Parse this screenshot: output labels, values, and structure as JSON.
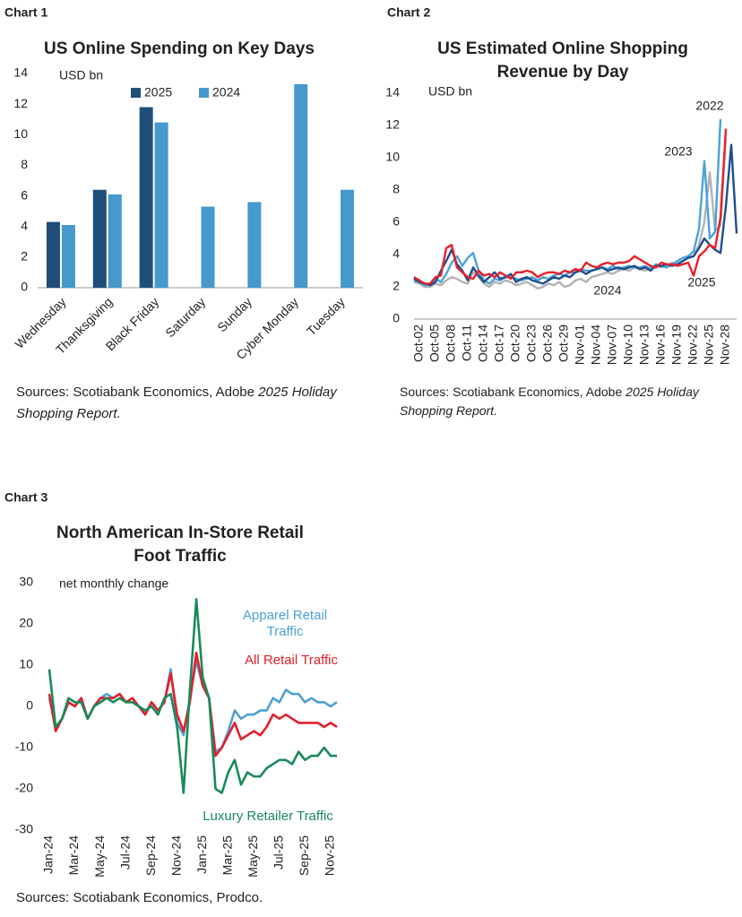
{
  "chart_data": [
    {
      "type": "bar",
      "label": "Chart 1",
      "title": "US Online Spending on Key Days",
      "y_label": "USD bn",
      "categories": [
        "Wednesday",
        "Thanksgiving",
        "Black Friday",
        "Saturday",
        "Sunday",
        "Cyber Monday",
        "Tuesday"
      ],
      "series": [
        {
          "name": "2025",
          "color": "#1f4e79",
          "values": [
            4.3,
            6.4,
            11.8,
            null,
            null,
            null,
            null
          ]
        },
        {
          "name": "2024",
          "color": "#4599cc",
          "values": [
            4.1,
            6.1,
            10.8,
            5.3,
            5.6,
            13.3,
            6.4
          ]
        }
      ],
      "ylim": [
        0,
        14
      ],
      "yticks": [
        0,
        2,
        4,
        6,
        8,
        10,
        12,
        14
      ],
      "sources": "Sources: Scotiabank Economics, Adobe ",
      "sources_italic": "2025 Holiday Shopping Report."
    },
    {
      "type": "line",
      "label": "Chart 2",
      "title": "US Estimated Online Shopping Revenue by Day",
      "y_label": "USD bn",
      "categories": [
        null,
        "Oct-02",
        null,
        null,
        "Oct-05",
        null,
        null,
        "Oct-08",
        null,
        null,
        "Oct-11",
        null,
        null,
        "Oct-14",
        null,
        null,
        "Oct-17",
        null,
        null,
        "Oct-20",
        null,
        null,
        "Oct-23",
        null,
        null,
        "Oct-26",
        null,
        null,
        "Oct-29",
        null,
        null,
        "Nov-01",
        null,
        null,
        "Nov-04",
        null,
        null,
        "Nov-07",
        null,
        null,
        "Nov-10",
        null,
        null,
        "Nov-13",
        null,
        null,
        "Nov-16",
        null,
        null,
        "Nov-19",
        null,
        null,
        "Nov-22",
        null,
        null,
        "Nov-25",
        null,
        null,
        "Nov-28",
        null,
        null
      ],
      "series": [
        {
          "name": "2022",
          "color": "#b3b3b3",
          "values": [
            2.3,
            2.2,
            2.0,
            2.0,
            2.2,
            2.1,
            2.4,
            2.6,
            2.5,
            2.3,
            2.2,
            2.9,
            2.6,
            2.2,
            2.0,
            2.3,
            2.2,
            2.4,
            2.3,
            2.1,
            2.2,
            2.3,
            2.1,
            1.9,
            2.0,
            2.2,
            2.1,
            2.3,
            2.0,
            2.1,
            2.4,
            2.5,
            2.3,
            2.6,
            2.7,
            2.8,
            2.9,
            2.8,
            3.0,
            3.1,
            3.0,
            3.2,
            3.1,
            3.0,
            3.2,
            3.3,
            3.2,
            3.3,
            3.5,
            3.4,
            3.6,
            3.8,
            3.9,
            4.6,
            6.0,
            9.1,
            5.5,
            5.8,
            11.3,
            null,
            null
          ]
        },
        {
          "name": "2023",
          "color": "#4aa3d8",
          "values": [
            2.4,
            2.3,
            2.1,
            2.2,
            2.5,
            2.3,
            2.8,
            3.5,
            3.9,
            3.3,
            3.8,
            4.1,
            3.0,
            2.4,
            2.2,
            2.5,
            2.4,
            2.6,
            2.6,
            2.5,
            2.4,
            2.5,
            2.6,
            2.4,
            2.6,
            2.5,
            2.7,
            2.8,
            2.7,
            2.9,
            2.9,
            3.1,
            3.0,
            3.0,
            3.1,
            3.2,
            3.1,
            3.3,
            3.1,
            3.2,
            3.3,
            3.2,
            3.2,
            3.3,
            3.1,
            3.4,
            3.3,
            3.2,
            3.4,
            3.6,
            3.8,
            3.9,
            4.2,
            5.6,
            9.8,
            5.0,
            5.4,
            12.4,
            null,
            null,
            null
          ]
        },
        {
          "name": "2024",
          "color": "#1f4e8c",
          "values": [
            2.5,
            2.3,
            2.2,
            2.1,
            2.3,
            3.0,
            3.6,
            4.3,
            3.4,
            3.0,
            2.4,
            3.2,
            2.7,
            2.3,
            2.6,
            2.9,
            2.5,
            2.6,
            2.8,
            2.3,
            2.5,
            2.6,
            2.4,
            2.3,
            2.2,
            2.4,
            2.6,
            2.5,
            2.7,
            2.6,
            2.9,
            3.0,
            2.8,
            3.0,
            3.1,
            3.2,
            3.0,
            3.1,
            3.2,
            3.1,
            3.2,
            3.3,
            3.1,
            3.2,
            3.0,
            3.3,
            3.3,
            3.4,
            3.3,
            3.4,
            3.6,
            3.8,
            3.9,
            4.4,
            5.0,
            4.6,
            4.3,
            4.1,
            7.0,
            10.8,
            5.3
          ]
        },
        {
          "name": "2025",
          "color": "#e8202a",
          "values": [
            2.6,
            2.4,
            2.2,
            2.2,
            2.6,
            2.7,
            4.4,
            4.6,
            3.2,
            2.9,
            2.6,
            2.5,
            3.0,
            2.7,
            2.8,
            2.6,
            2.9,
            2.7,
            2.5,
            2.9,
            2.9,
            3.0,
            2.9,
            2.6,
            2.8,
            2.9,
            2.9,
            2.8,
            3.0,
            2.9,
            3.1,
            3.0,
            3.5,
            3.3,
            3.2,
            3.4,
            3.5,
            3.4,
            3.5,
            3.5,
            3.6,
            3.9,
            3.7,
            3.5,
            3.3,
            3.2,
            3.5,
            3.4,
            3.4,
            3.3,
            3.4,
            3.5,
            2.7,
            3.9,
            4.2,
            4.6,
            4.4,
            6.3,
            11.8,
            null,
            null
          ]
        }
      ],
      "ylim": [
        0,
        14
      ],
      "yticks": [
        0,
        2,
        4,
        6,
        8,
        10,
        12,
        14
      ],
      "sources": "Sources: Scotiabank Economics, Adobe ",
      "sources_italic": "2025 Holiday Shopping Report."
    },
    {
      "type": "line",
      "label": "Chart 3",
      "title": "North American In-Store Retail Foot Traffic",
      "y_label": "net monthly change",
      "categories": [
        "Jan-24",
        null,
        null,
        null,
        "Mar-24",
        null,
        null,
        null,
        "May-24",
        null,
        null,
        null,
        "Jul-24",
        null,
        null,
        null,
        "Sep-24",
        null,
        null,
        null,
        "Nov-24",
        null,
        null,
        null,
        "Jan-25",
        null,
        null,
        null,
        "Mar-25",
        null,
        null,
        null,
        "May-25",
        null,
        null,
        null,
        "Jul-25",
        null,
        null,
        null,
        "Sep-25",
        null,
        null,
        null,
        "Nov-25",
        null
      ],
      "series": [
        {
          "name": "Apparel Retail Traffic",
          "color": "#4ea1d3",
          "values": [
            2,
            -5,
            -3,
            1,
            0,
            2,
            -3,
            0,
            2,
            3,
            2,
            3,
            1,
            2,
            0,
            -2,
            1,
            -1,
            1,
            9,
            -4,
            -7,
            2,
            11,
            5,
            2,
            -11,
            -10,
            -6,
            -1,
            -3,
            -2,
            -2,
            -1,
            -1,
            2,
            1,
            4,
            3,
            3,
            1,
            2,
            1,
            1,
            0,
            1
          ]
        },
        {
          "name": "All Retail Traffic",
          "color": "#e3202b",
          "values": [
            3,
            -6,
            -3,
            1,
            0,
            2,
            -3,
            0,
            2,
            2,
            2,
            3,
            1,
            2,
            0,
            -2,
            1,
            -1,
            1,
            8,
            -2,
            -6,
            1,
            13,
            5,
            2,
            -12,
            -10,
            -7,
            -4,
            -8,
            -7,
            -6,
            -7,
            -5,
            -2,
            -3,
            -2,
            -3,
            -4,
            -4,
            -4,
            -4,
            -5,
            -4,
            -5
          ]
        },
        {
          "name": "Luxury Retailer Traffic",
          "color": "#1a8a5a",
          "values": [
            9,
            -5,
            -3,
            2,
            1,
            1,
            -3,
            0,
            1,
            2,
            1,
            2,
            1,
            1,
            0,
            -1,
            0,
            -2,
            2,
            3,
            -5,
            -21,
            4,
            26,
            7,
            2,
            -20,
            -21,
            -16,
            -13,
            -19,
            -16,
            -17,
            -17,
            -15,
            -14,
            -13,
            -13,
            -14,
            -11,
            -13,
            -12,
            -12,
            -10,
            -12,
            -12
          ]
        }
      ],
      "ylim": [
        -30,
        30
      ],
      "yticks": [
        -30,
        -20,
        -10,
        0,
        10,
        20,
        30
      ],
      "sources": "Sources: Scotiabank Economics, Prodco."
    }
  ]
}
